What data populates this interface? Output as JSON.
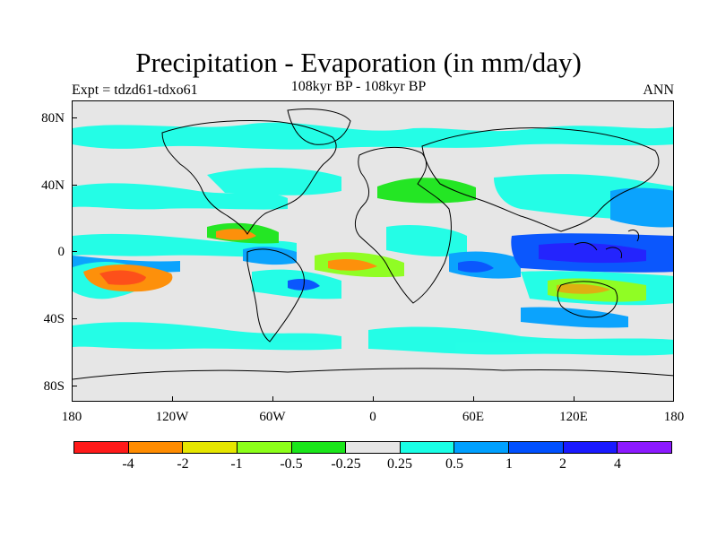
{
  "title": "Precipitation - Evaporation (in mm/day)",
  "subtitle": "108kyr BP - 108kyr BP",
  "left_label": "Expt = tdzd61-tdxo61",
  "right_label": "ANN",
  "map": {
    "background_color": "#e6e6e6",
    "lat_ticks": [
      "80N",
      "40N",
      "0",
      "40S",
      "80S"
    ],
    "lon_ticks": [
      "180",
      "120W",
      "60W",
      "0",
      "60E",
      "120E",
      "180"
    ]
  },
  "colorbar": {
    "colors": [
      "#ff1a1a",
      "#ff8c00",
      "#e6e600",
      "#8cff1a",
      "#1ae61a",
      "#e6e6e6",
      "#1affe6",
      "#00a0ff",
      "#0050ff",
      "#1a1aff",
      "#8c1aff"
    ],
    "labels": [
      "-4",
      "-2",
      "-1",
      "-0.5",
      "-0.25",
      "0.25",
      "0.5",
      "1",
      "2",
      "4"
    ]
  }
}
